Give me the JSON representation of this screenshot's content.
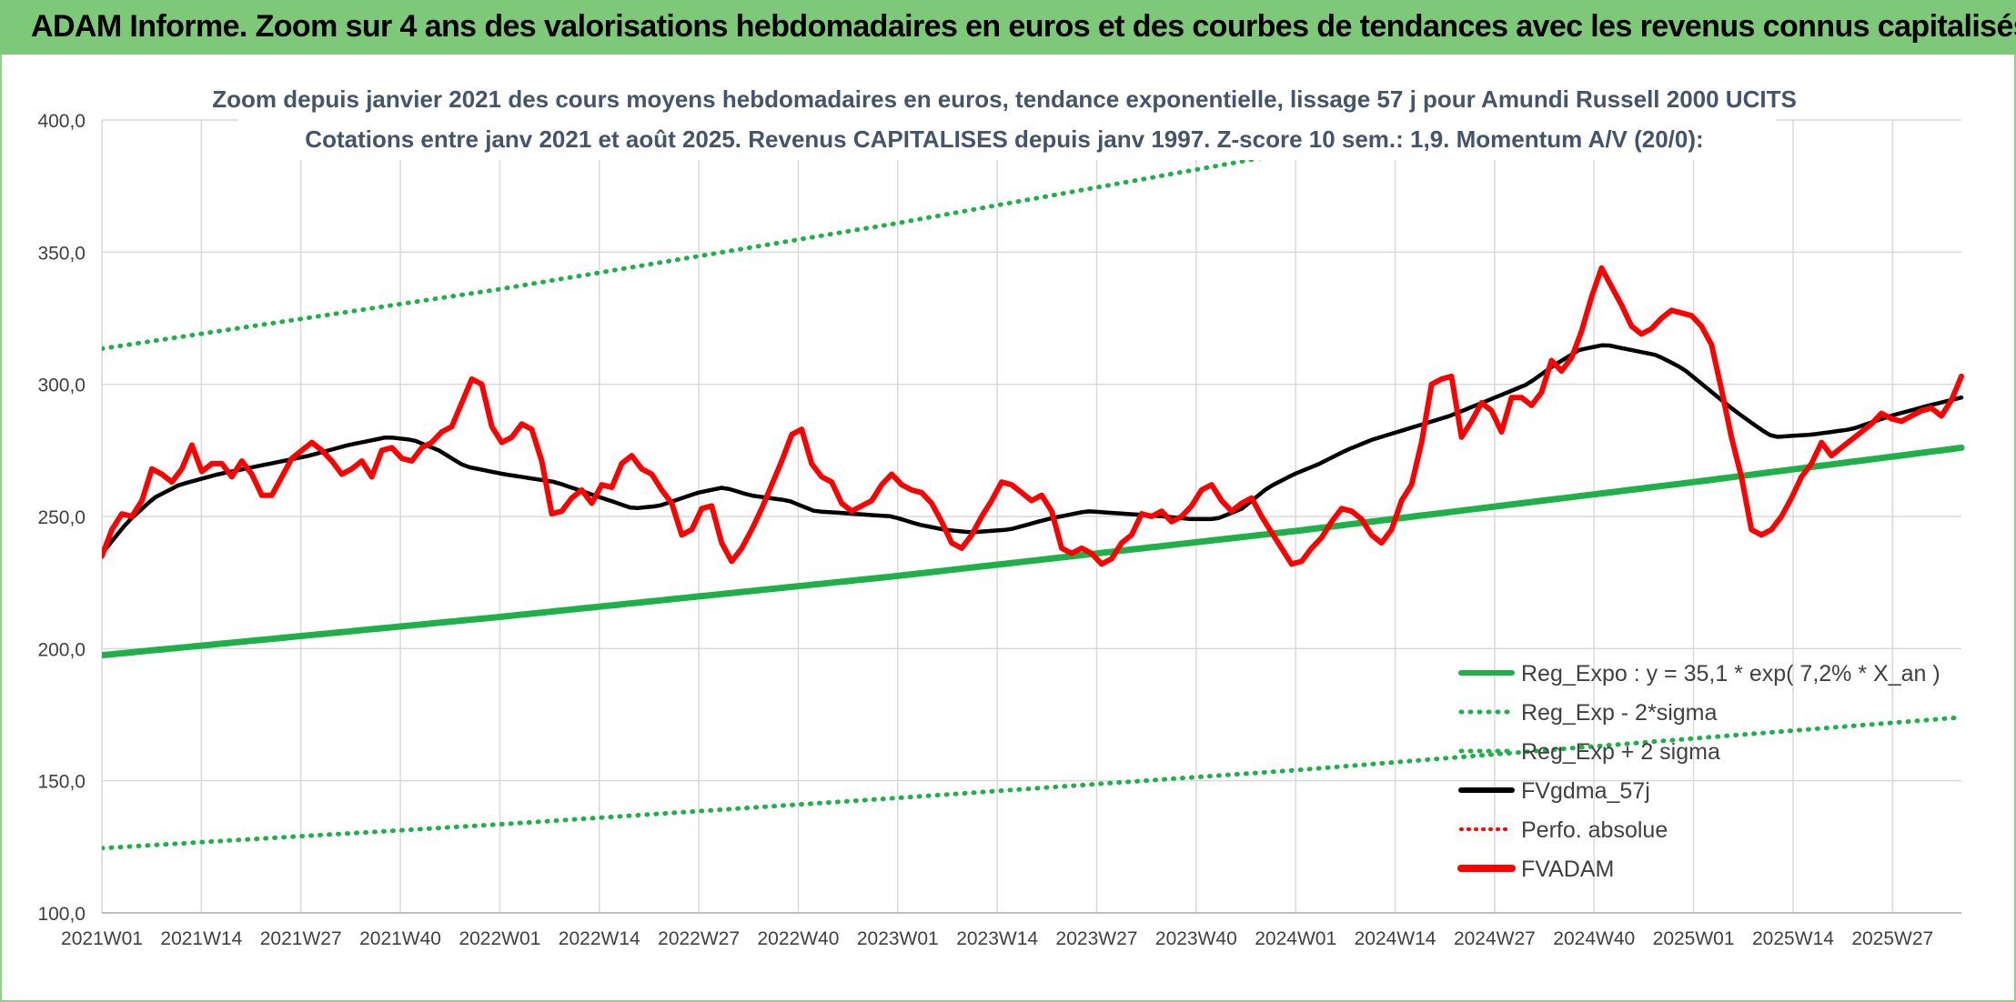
{
  "header": {
    "title": "ADAM Informe. Zoom sur 4 ans des valorisations hebdomadaires en euros et des courbes de tendances avec les revenus connus capitalisés"
  },
  "colors": {
    "header_band": "#7ec879",
    "trend_green": "#1fb04a",
    "black": "#000000",
    "red": "#ff0000",
    "grid": "#d9d9d9",
    "axis_text": "#404040",
    "title_text": "#44546a"
  },
  "chart_data": {
    "type": "line",
    "title": "Zoom depuis janvier 2021 des cours moyens hebdomadaires en euros, tendance exponentielle, lissage 57 j pour Amundi Russell 2000 UCITS",
    "subtitle": "Cotations entre janv 2021 et août 2025. Revenus CAPITALISES depuis janv 1997. Z-score 10 sem.: 1,9. Momentum A/V (20/0):",
    "xlabel": "",
    "ylabel": "",
    "ylim": [
      100,
      400
    ],
    "yticks": [
      "100,0",
      "150,0",
      "200,0",
      "250,0",
      "300,0",
      "350,0",
      "400,0"
    ],
    "x_tick_labels": [
      "2021W01",
      "2021W14",
      "2021W27",
      "2021W40",
      "2022W01",
      "2022W14",
      "2022W27",
      "2022W40",
      "2023W01",
      "2023W14",
      "2023W27",
      "2023W40",
      "2024W01",
      "2024W14",
      "2024W27",
      "2024W40",
      "2025W01",
      "2025W14",
      "2025W27"
    ],
    "x_tick_index": [
      0,
      13,
      26,
      39,
      52,
      65,
      78,
      91,
      104,
      117,
      130,
      143,
      156,
      169,
      182,
      195,
      208,
      221,
      234
    ],
    "n_weeks": 244,
    "grid": true,
    "legend_position": "bottom-right",
    "legend": [
      {
        "label": "Reg_Expo : y = 35,1 * exp( 7,2% *  X_an )",
        "style": "solid",
        "color": "#1fb04a"
      },
      {
        "label": "Reg_Exp - 2*sigma",
        "style": "dotted",
        "color": "#1fb04a"
      },
      {
        "label": "Reg_Exp + 2 sigma",
        "style": "dotted",
        "color": "#1fb04a"
      },
      {
        "label": "FVgdma_57j",
        "style": "solid",
        "color": "#000000"
      },
      {
        "label": "Perfo. absolue",
        "style": "dotted",
        "color": "#ff0000"
      },
      {
        "label": "FVADAM",
        "style": "solid-thick",
        "color": "#ff0000"
      }
    ],
    "series": [
      {
        "name": "Reg_Expo : y = 35,1 * exp( 7,2% *  X_an )",
        "keypoints": [
          [
            0,
            197.5
          ],
          [
            52,
            212
          ],
          [
            104,
            227.5
          ],
          [
            156,
            244.5
          ],
          [
            208,
            263
          ],
          [
            243,
            276
          ]
        ]
      },
      {
        "name": "Reg_Exp - 2*sigma",
        "keypoints": [
          [
            0,
            124.5
          ],
          [
            52,
            133.5
          ],
          [
            104,
            143.5
          ],
          [
            156,
            154
          ],
          [
            208,
            166
          ],
          [
            243,
            174
          ]
        ]
      },
      {
        "name": "Reg_Exp + 2 sigma",
        "keypoints": [
          [
            0,
            313.5
          ],
          [
            52,
            336
          ],
          [
            104,
            361
          ],
          [
            156,
            388
          ],
          [
            208,
            417
          ],
          [
            243,
            438
          ]
        ]
      },
      {
        "name": "FVgdma_57j",
        "keypoints": [
          [
            0,
            236
          ],
          [
            4,
            248
          ],
          [
            8,
            257
          ],
          [
            12,
            262
          ],
          [
            18,
            266
          ],
          [
            26,
            270
          ],
          [
            32,
            273
          ],
          [
            38,
            277
          ],
          [
            44,
            280
          ],
          [
            48,
            279
          ],
          [
            52,
            275
          ],
          [
            56,
            269
          ],
          [
            62,
            266
          ],
          [
            70,
            263
          ],
          [
            76,
            258
          ],
          [
            82,
            253
          ],
          [
            86,
            254
          ],
          [
            92,
            259
          ],
          [
            96,
            261
          ],
          [
            100,
            258
          ],
          [
            106,
            256
          ],
          [
            110,
            252
          ],
          [
            116,
            251
          ],
          [
            122,
            250
          ],
          [
            126,
            247
          ],
          [
            130,
            245
          ],
          [
            134,
            244
          ],
          [
            140,
            245
          ],
          [
            146,
            249
          ],
          [
            152,
            252
          ],
          [
            158,
            251
          ],
          [
            164,
            250
          ],
          [
            168,
            249
          ],
          [
            172,
            249
          ],
          [
            176,
            253
          ],
          [
            180,
            261
          ],
          [
            184,
            266
          ],
          [
            188,
            270
          ],
          [
            192,
            275
          ],
          [
            196,
            279
          ],
          [
            200,
            282
          ],
          [
            204,
            285
          ],
          [
            208,
            288
          ],
          [
            212,
            292
          ],
          [
            216,
            296
          ],
          [
            220,
            300
          ],
          [
            224,
            307
          ],
          [
            228,
            313
          ],
          [
            232,
            315
          ],
          [
            236,
            313
          ],
          [
            240,
            311
          ],
          [
            244,
            306
          ],
          [
            248,
            298
          ],
          [
            252,
            290
          ],
          [
            256,
            283
          ],
          [
            258,
            280
          ],
          [
            264,
            281
          ],
          [
            270,
            283
          ],
          [
            276,
            288
          ],
          [
            282,
            292
          ],
          [
            287,
            295
          ]
        ]
      },
      {
        "name": "FVADAM",
        "values": [
          235,
          245,
          251,
          250,
          256,
          268,
          266,
          263,
          268,
          277,
          267,
          270,
          270,
          265,
          271,
          266,
          258,
          258,
          265,
          272,
          275,
          278,
          275,
          271,
          266,
          268,
          271,
          265,
          275,
          276,
          272,
          271,
          276,
          278,
          282,
          284,
          293,
          302,
          300,
          284,
          278,
          280,
          285,
          283,
          271,
          251,
          252,
          257,
          260,
          255,
          262,
          261,
          270,
          273,
          268,
          266,
          260,
          255,
          243,
          245,
          253,
          254,
          240,
          233,
          238,
          245,
          253,
          262,
          271,
          281,
          283,
          270,
          265,
          263,
          255,
          252,
          254,
          256,
          262,
          266,
          262,
          260,
          259,
          255,
          248,
          240,
          238,
          243,
          250,
          256,
          263,
          262,
          259,
          256,
          258,
          252,
          238,
          236,
          238,
          236,
          232,
          234,
          240,
          243,
          251,
          250,
          252,
          248,
          250,
          254,
          260,
          262,
          256,
          252,
          255,
          257,
          250,
          244,
          238,
          232,
          233,
          238,
          242,
          248,
          253,
          252,
          249,
          243,
          240,
          245,
          256,
          262,
          278,
          300,
          302,
          303,
          280,
          286,
          293,
          290,
          282,
          295,
          295,
          292,
          297,
          309,
          305,
          310,
          320,
          333,
          344,
          337,
          330,
          322,
          319,
          321,
          325,
          328,
          327,
          326,
          322,
          315,
          298,
          280,
          265,
          245,
          243,
          245,
          250,
          257,
          265,
          270,
          278,
          273,
          276,
          279,
          282,
          285,
          289,
          287,
          286,
          288,
          290,
          291,
          288,
          294,
          303
        ]
      }
    ]
  }
}
